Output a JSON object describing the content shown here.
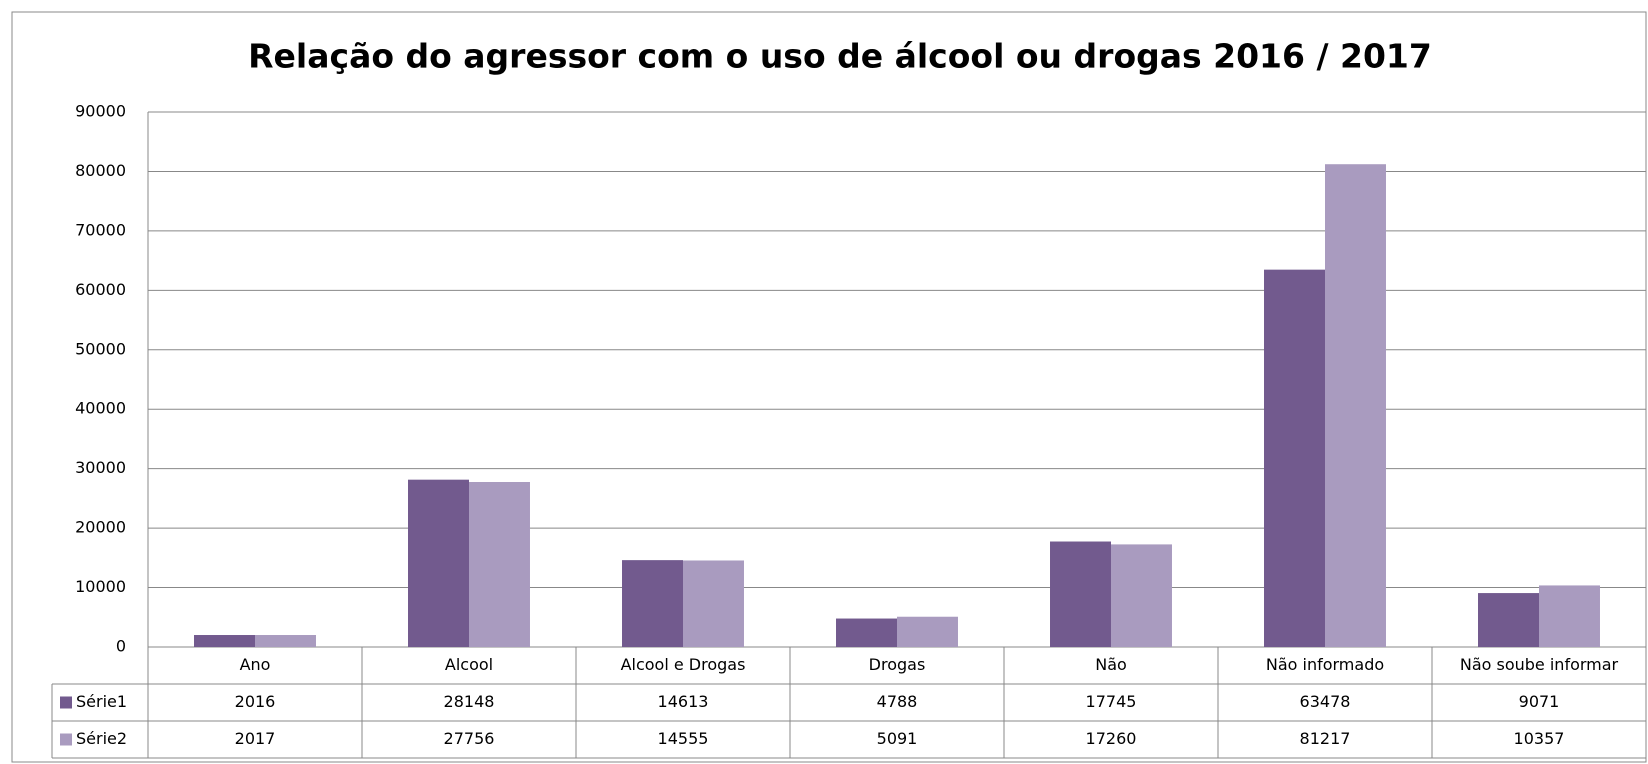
{
  "chart_data": {
    "type": "bar",
    "title": "Relação do agressor com o uso de álcool ou drogas 2016 / 2017",
    "categories": [
      "Ano",
      "Alcool",
      "Alcool e Drogas",
      "Drogas",
      "Não",
      "Não informado",
      "Não soube informar"
    ],
    "series": [
      {
        "name": "Série1",
        "color": "#725a8e",
        "values": [
          2016,
          28148,
          14613,
          4788,
          17745,
          63478,
          9071
        ]
      },
      {
        "name": "Série2",
        "color": "#a99bbf",
        "values": [
          2017,
          27756,
          14555,
          5091,
          17260,
          81217,
          10357
        ]
      }
    ],
    "ylim": [
      0,
      90000
    ],
    "yticks": [
      0,
      10000,
      20000,
      30000,
      40000,
      50000,
      60000,
      70000,
      80000,
      90000
    ],
    "grid": true
  }
}
